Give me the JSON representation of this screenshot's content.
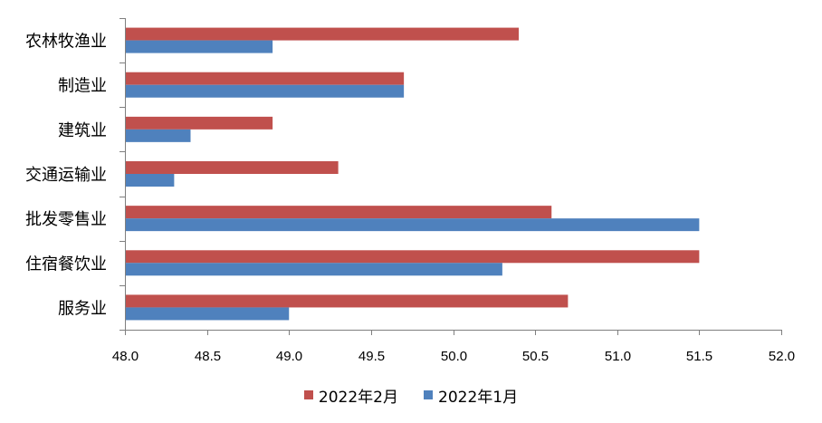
{
  "chart_data": {
    "type": "bar",
    "orientation": "horizontal",
    "categories": [
      "农林牧渔业",
      "制造业",
      "建筑业",
      "交通运输业",
      "批发零售业",
      "住宿餐饮业",
      "服务业"
    ],
    "series": [
      {
        "name": "2022年2月",
        "color": "#c0504d",
        "values": [
          50.4,
          49.7,
          48.9,
          49.3,
          50.6,
          51.5,
          50.7
        ]
      },
      {
        "name": "2022年1月",
        "color": "#4f81bd",
        "values": [
          48.9,
          49.7,
          48.4,
          48.3,
          51.5,
          50.3,
          49.0
        ]
      }
    ],
    "xlim": [
      48.0,
      52.0
    ],
    "xticks": [
      "48.0",
      "48.5",
      "49.0",
      "49.5",
      "50.0",
      "50.5",
      "51.0",
      "51.5",
      "52.0"
    ],
    "title": "",
    "xlabel": "",
    "ylabel": "",
    "grid": false,
    "legend_position": "bottom"
  }
}
